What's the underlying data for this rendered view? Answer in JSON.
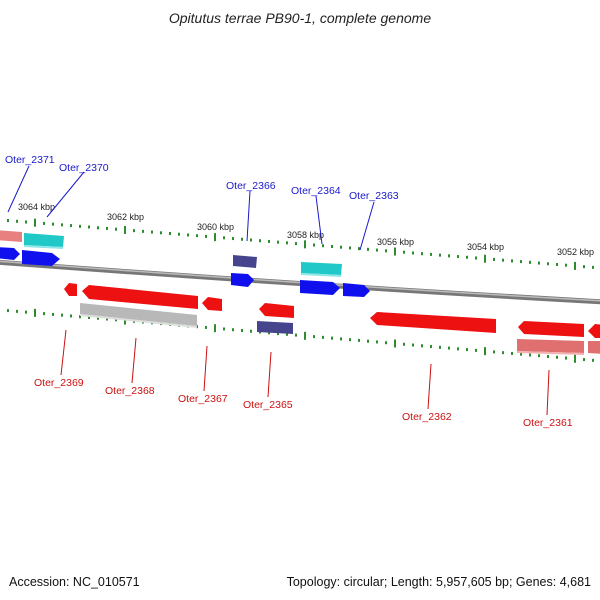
{
  "title": "Opitutus terrae PB90-1, complete genome",
  "footer": {
    "accession": "Accession: NC_010571",
    "summary": "Topology: circular; Length: 5,957,605 bp; Genes: 4,681"
  },
  "colors": {
    "forward_label": "#1a1acc",
    "reverse_label": "#cc1111",
    "backbone": "#888888",
    "tick": "#2e8b2e",
    "cds_forward": "#1010ee",
    "rna_forward": "#1ecfcf",
    "cds_reverse": "#ee1111",
    "pseudo": "#4a4890",
    "reverse_gray": "#bbbbbb",
    "reverse_pink": "#e07070"
  },
  "scale_labels": [
    "3064 kbp",
    "3062 kbp",
    "3060 kbp",
    "3058 kbp",
    "3056 kbp",
    "3054 kbp",
    "3052 kbp"
  ],
  "forward_genes": [
    "Oter_2371",
    "Oter_2370",
    "Oter_2366",
    "Oter_2364",
    "Oter_2363"
  ],
  "reverse_genes": [
    "Oter_2369",
    "Oter_2368",
    "Oter_2367",
    "Oter_2365",
    "Oter_2362",
    "Oter_2361"
  ]
}
